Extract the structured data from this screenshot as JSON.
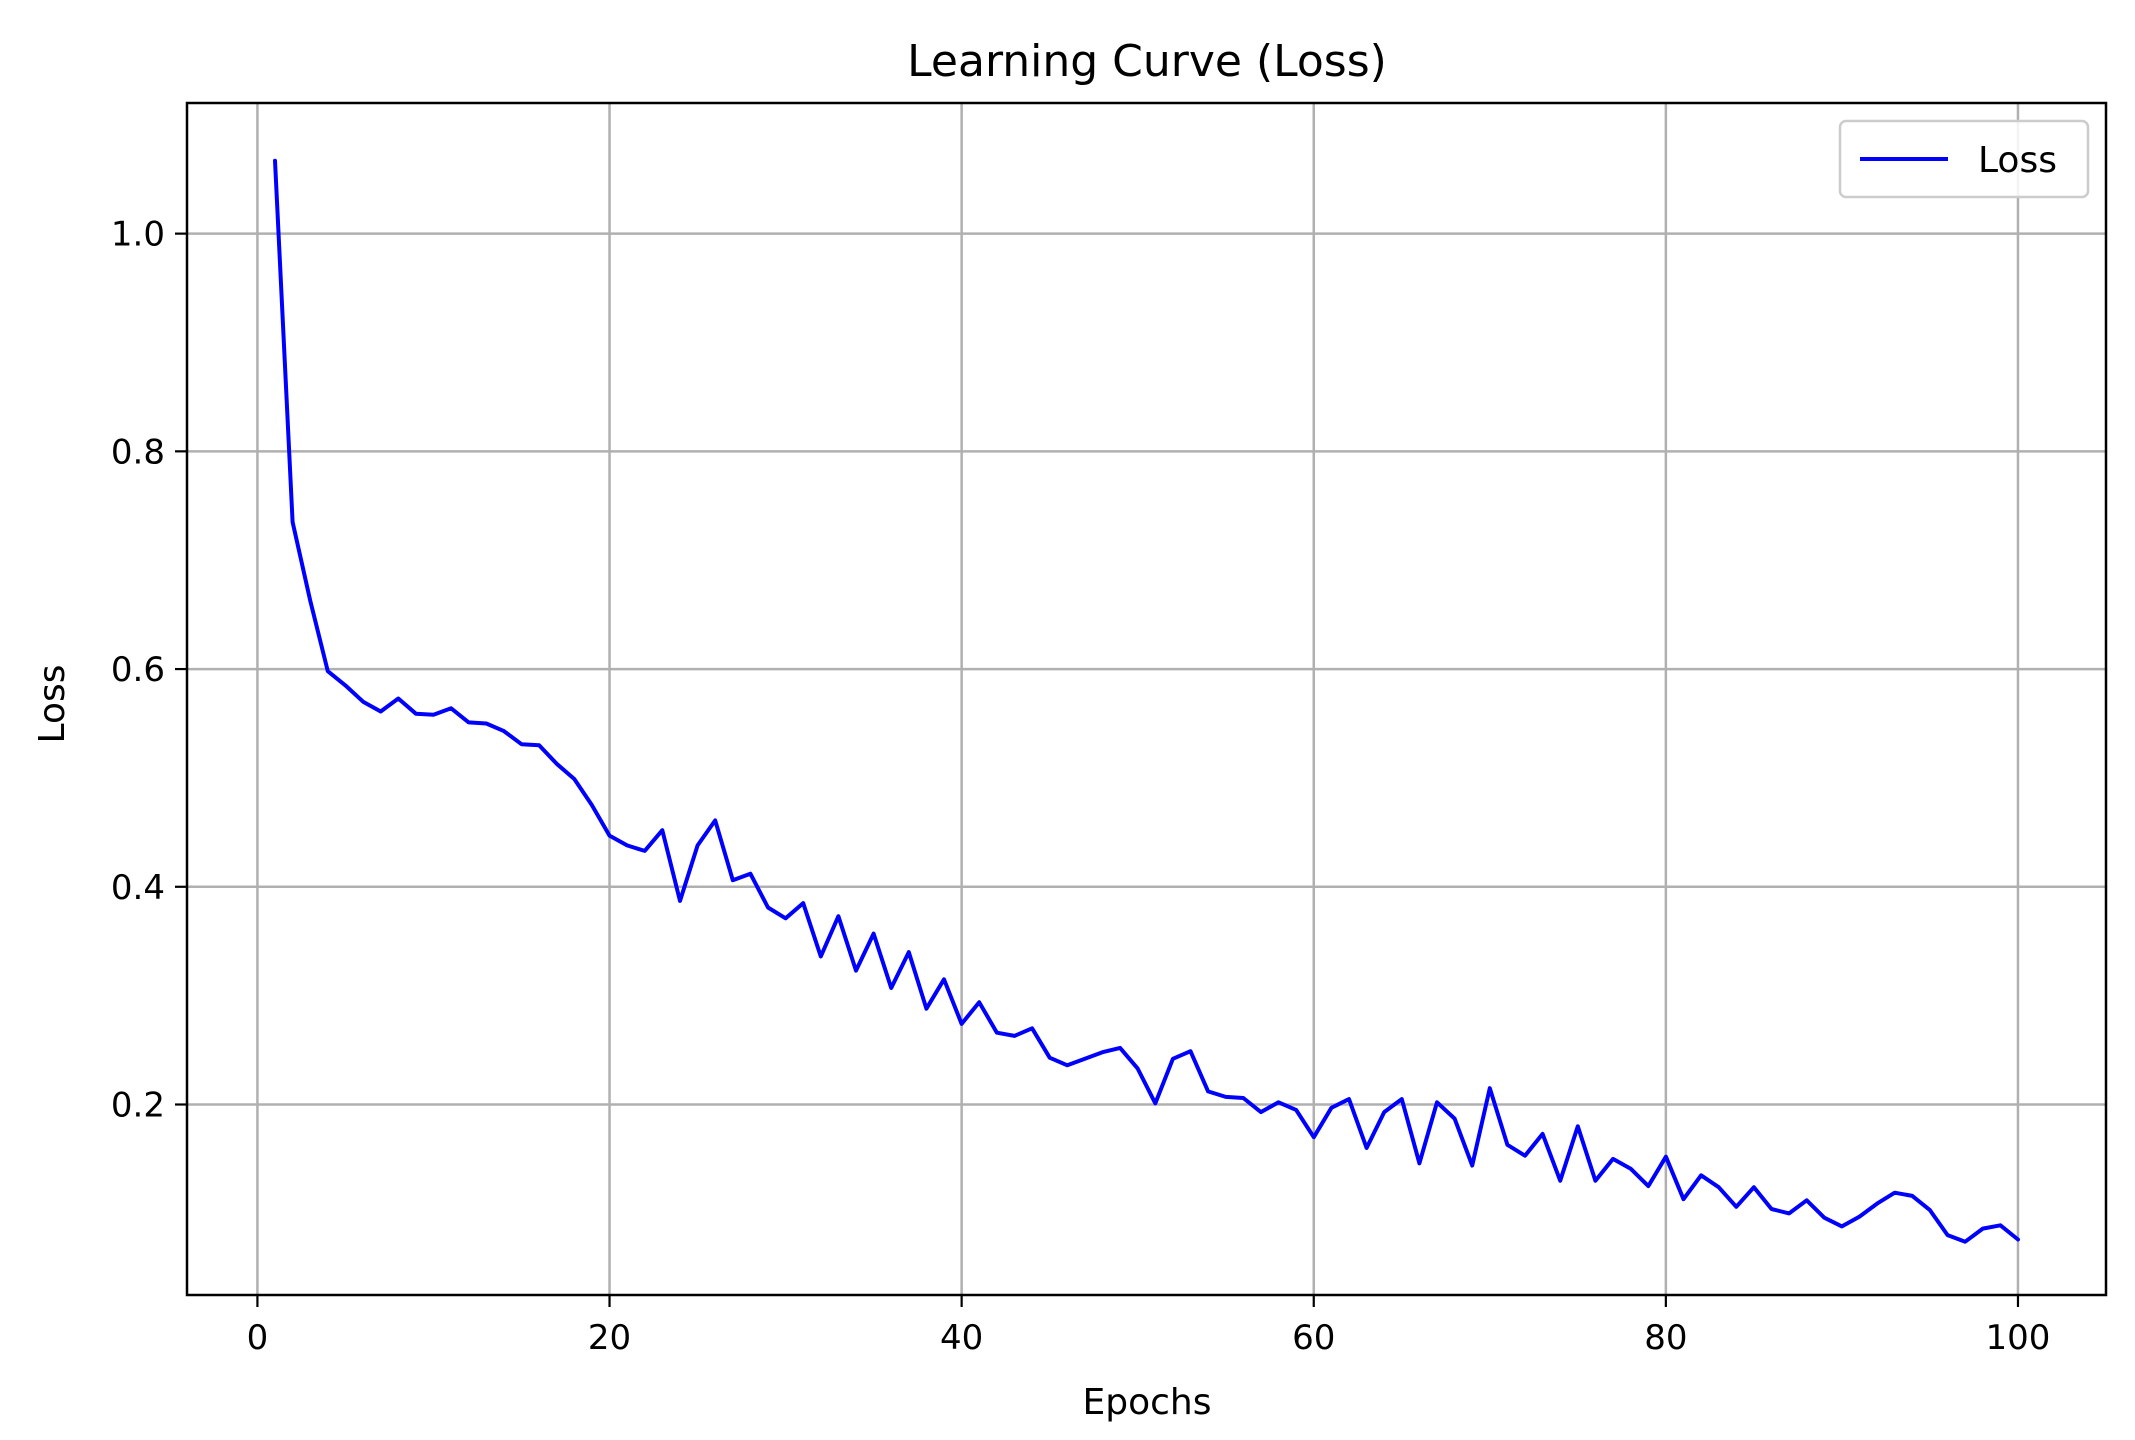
{
  "chart_data": {
    "type": "line",
    "title": "Learning Curve (Loss)",
    "xlabel": "Epochs",
    "ylabel": "Loss",
    "xlim": [
      -4,
      105
    ],
    "ylim": [
      0.025,
      1.12
    ],
    "xticks": [
      0,
      20,
      40,
      60,
      80,
      100
    ],
    "yticks": [
      0.2,
      0.4,
      0.6,
      0.8,
      1.0
    ],
    "xtick_labels": [
      "0",
      "20",
      "40",
      "60",
      "80",
      "100"
    ],
    "ytick_labels": [
      "0.2",
      "0.4",
      "0.6",
      "0.8",
      "1.0"
    ],
    "grid": true,
    "legend_position": "top-right",
    "series": [
      {
        "name": "Loss",
        "color": "#0000ff",
        "x": [
          1,
          2,
          3,
          4,
          5,
          6,
          7,
          8,
          9,
          10,
          11,
          12,
          13,
          14,
          15,
          16,
          17,
          18,
          19,
          20,
          21,
          22,
          23,
          24,
          25,
          26,
          27,
          28,
          29,
          30,
          31,
          32,
          33,
          34,
          35,
          36,
          37,
          38,
          39,
          40,
          41,
          42,
          43,
          44,
          45,
          46,
          47,
          48,
          49,
          50,
          51,
          52,
          53,
          54,
          55,
          56,
          57,
          58,
          59,
          60,
          61,
          62,
          63,
          64,
          65,
          66,
          67,
          68,
          69,
          70,
          71,
          72,
          73,
          74,
          75,
          76,
          77,
          78,
          79,
          80,
          81,
          82,
          83,
          84,
          85,
          86,
          87,
          88,
          89,
          90,
          91,
          92,
          93,
          94,
          95,
          96,
          97,
          98,
          99,
          100
        ],
        "y": [
          1.067,
          0.735,
          0.663,
          0.598,
          0.585,
          0.57,
          0.561,
          0.573,
          0.559,
          0.558,
          0.564,
          0.551,
          0.55,
          0.543,
          0.531,
          0.53,
          0.513,
          0.499,
          0.475,
          0.447,
          0.438,
          0.433,
          0.452,
          0.387,
          0.438,
          0.461,
          0.406,
          0.412,
          0.381,
          0.371,
          0.385,
          0.336,
          0.373,
          0.323,
          0.357,
          0.307,
          0.34,
          0.288,
          0.315,
          0.274,
          0.294,
          0.266,
          0.263,
          0.27,
          0.243,
          0.236,
          0.242,
          0.248,
          0.252,
          0.233,
          0.201,
          0.242,
          0.249,
          0.212,
          0.207,
          0.206,
          0.193,
          0.202,
          0.195,
          0.17,
          0.197,
          0.205,
          0.16,
          0.193,
          0.205,
          0.146,
          0.202,
          0.187,
          0.144,
          0.215,
          0.163,
          0.153,
          0.173,
          0.13,
          0.18,
          0.13,
          0.15,
          0.141,
          0.125,
          0.152,
          0.113,
          0.135,
          0.124,
          0.106,
          0.124,
          0.104,
          0.1,
          0.112,
          0.096,
          0.088,
          0.097,
          0.109,
          0.119,
          0.116,
          0.103,
          0.08,
          0.074,
          0.086,
          0.089,
          0.076
        ]
      }
    ]
  }
}
